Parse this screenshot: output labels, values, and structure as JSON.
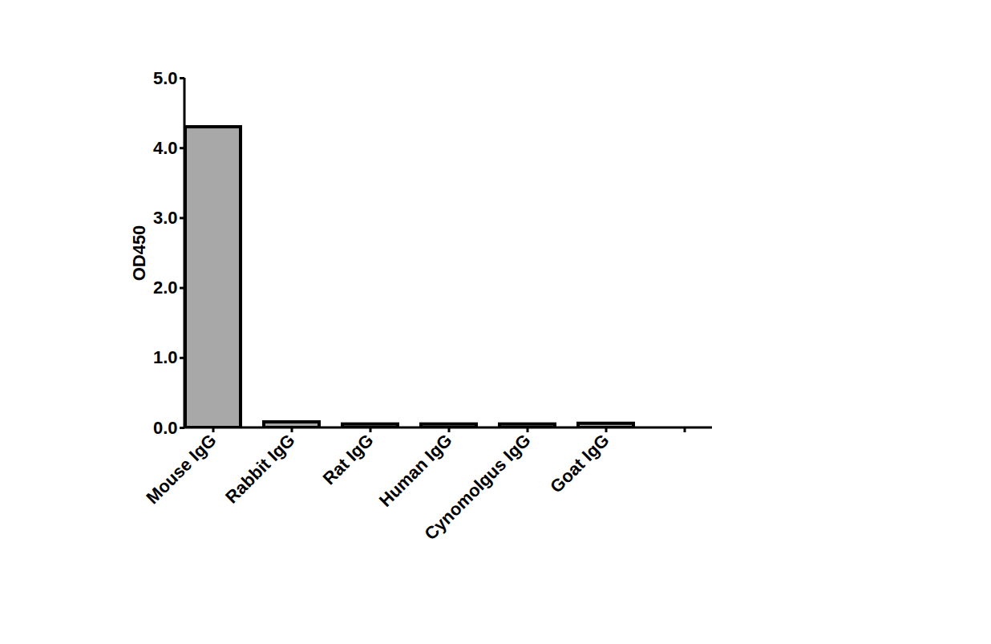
{
  "chart_data": {
    "type": "bar",
    "y_label": "OD450",
    "categories": [
      "Mouse IgG",
      "Rabbit IgG",
      "Rat IgG",
      "Human IgG",
      "Cynomolgus IgG",
      "Goat IgG",
      null
    ],
    "values": [
      4.3,
      0.08,
      0.05,
      0.05,
      0.05,
      0.06,
      null
    ],
    "color": "#a8a8a8",
    "ylim": [
      0,
      5
    ],
    "yticks": [
      0,
      1,
      2,
      3,
      4,
      5
    ],
    "grid": false
  }
}
